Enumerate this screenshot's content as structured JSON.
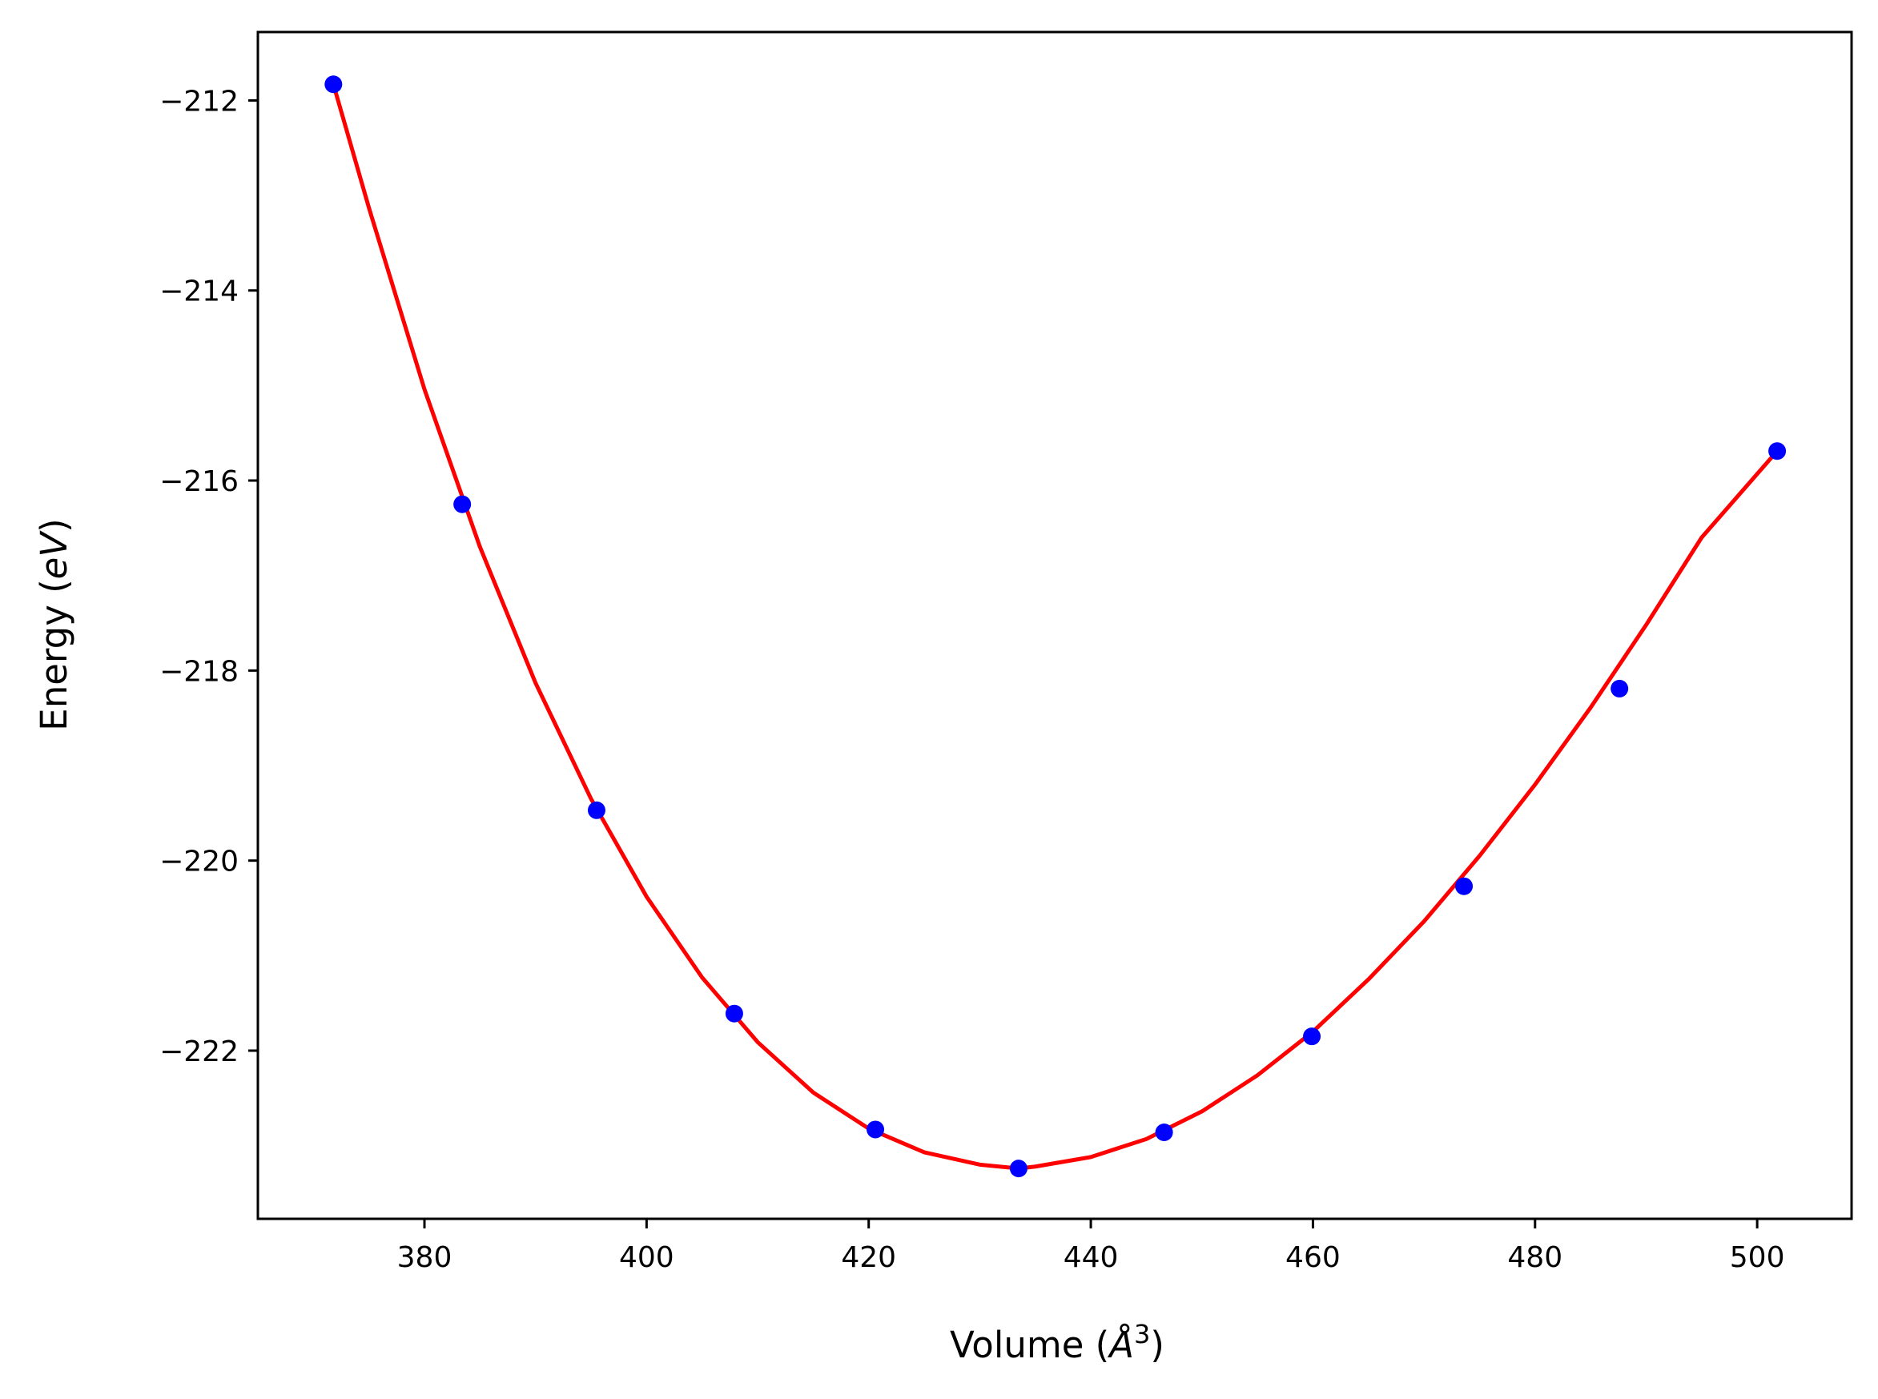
{
  "chart_data": {
    "type": "scatter",
    "title": "",
    "xlabel": {
      "prefix": "Volume (",
      "symbol": "Å",
      "superscript": "3",
      "suffix": ")"
    },
    "ylabel": {
      "prefix": "Energy (",
      "symbol": "eV",
      "suffix": ")"
    },
    "xlim": [
      365,
      508.5
    ],
    "ylim": [
      -223.77,
      -211.28
    ],
    "x_ticks": [
      380,
      400,
      420,
      440,
      460,
      480,
      500
    ],
    "y_ticks": [
      -212,
      -214,
      -216,
      -218,
      -220,
      -222
    ],
    "x_tick_labels": [
      "380",
      "400",
      "420",
      "440",
      "460",
      "480",
      "500"
    ],
    "y_tick_labels": [
      "−212",
      "−214",
      "−216",
      "−218",
      "−220",
      "−222"
    ],
    "grid": false,
    "legend": false,
    "series": [
      {
        "kind": "points",
        "color": "#0000ff",
        "x": [
          371.8,
          383.4,
          395.5,
          407.9,
          420.6,
          433.5,
          446.6,
          459.9,
          473.6,
          487.6,
          501.8
        ],
        "y": [
          -211.83,
          -216.25,
          -219.47,
          -221.61,
          -222.83,
          -223.24,
          -222.86,
          -221.85,
          -220.27,
          -218.19,
          -215.69
        ]
      },
      {
        "kind": "fit-curve",
        "color": "#ff0000",
        "x": [
          371.8,
          375,
          380,
          385,
          390,
          395,
          400,
          405,
          410,
          415,
          420,
          425,
          430,
          433.5,
          435,
          440,
          445,
          450,
          455,
          460,
          465,
          470,
          475,
          480,
          485,
          490,
          495,
          501.8
        ],
        "y": [
          -211.83,
          -213.13,
          -215.04,
          -216.7,
          -218.13,
          -219.35,
          -220.38,
          -221.23,
          -221.91,
          -222.44,
          -222.82,
          -223.07,
          -223.2,
          -223.24,
          -223.22,
          -223.12,
          -222.93,
          -222.64,
          -222.26,
          -221.8,
          -221.25,
          -220.64,
          -219.95,
          -219.2,
          -218.39,
          -217.52,
          -216.6,
          -215.69
        ]
      }
    ]
  }
}
